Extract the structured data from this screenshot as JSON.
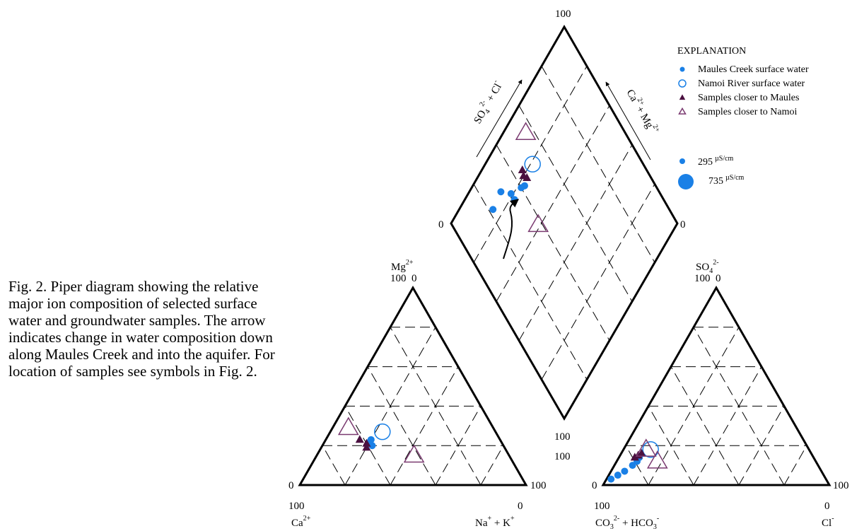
{
  "caption": "Fig. 2. Piper diagram showing the relative major ion composition of selected surface water and groundwater samples. The arrow indicates change in water composition down along Maules Creek and into the aquifer. For location of samples see symbols in Fig. 2.",
  "diamond": {
    "label_top": "100",
    "label_left": "0",
    "label_right": "0",
    "label_bottom": "100",
    "axis_left_so4": "SO",
    "axis_left_so4_sub": "4",
    "axis_left_so4_sup": "2-",
    "axis_left_cl": " + Cl",
    "axis_left_cl_sup": "-",
    "axis_right_ca": "Ca",
    "axis_right_ca_sup": "2+",
    "axis_right_mg": "+ Mg",
    "axis_right_mg_sup": "2+"
  },
  "cation": {
    "apex": "Mg",
    "apex_sup": "2+",
    "apex_values": "100  0",
    "left_zero": "0",
    "right_hundred": "100",
    "bottom_left_value": "100",
    "bottom_right_value": "0",
    "bottom_left_label": "Ca",
    "bottom_left_sup": "2+",
    "bottom_right_label_na": "Na",
    "bottom_right_label_na_sup": "+",
    "bottom_right_label_k": " + K",
    "bottom_right_label_k_sup": "+"
  },
  "anion": {
    "apex": "SO",
    "apex_sub": "4",
    "apex_sup": "2-",
    "apex_values": "100  0",
    "left_hundred": "100",
    "left_zero": "0",
    "right_hundred": "100",
    "bottom_left_value": "100",
    "bottom_right_value": "0",
    "bottom_left_label_co": "CO",
    "bottom_left_label_co_sub": "3",
    "bottom_left_label_co_sup": "2-",
    "bottom_left_label_hco": " + HCO",
    "bottom_left_label_hco_sub": "3",
    "bottom_left_label_hco_sup": "-",
    "bottom_right_label": "Cl",
    "bottom_right_sup": "-"
  },
  "legend": {
    "title": "EXPLANATION",
    "items": [
      {
        "label": "Maules Creek surface water",
        "marker": "filled-circle"
      },
      {
        "label": "Namoi River surface water",
        "marker": "open-circle"
      },
      {
        "label": "Samples closer to Maules",
        "marker": "filled-triangle"
      },
      {
        "label": "Samples closer to Namoi",
        "marker": "open-triangle"
      }
    ],
    "sizes": [
      {
        "value": "295",
        "unit": "µS/cm"
      },
      {
        "value": "735",
        "unit": "µS/cm"
      }
    ]
  },
  "colors": {
    "maules": "#1a80e6",
    "namoi": "#1a80e6",
    "closer_maules": "#4a1040",
    "closer_namoi": "#7a3a70",
    "frame": "#000000"
  },
  "chart_data": {
    "type": "scatter",
    "series": [
      {
        "name": "Maules Creek surface water",
        "marker": "filled-circle",
        "cation_points": [
          {
            "ca": 58,
            "mg": 20,
            "na_k": 22
          },
          {
            "ca": 58,
            "mg": 22,
            "na_k": 20
          },
          {
            "ca": 57,
            "mg": 23,
            "na_k": 20
          }
        ],
        "anion_points": [
          {
            "co3_hco3": 95,
            "so4": 3,
            "cl": 2
          },
          {
            "co3_hco3": 91,
            "so4": 5,
            "cl": 4
          },
          {
            "co3_hco3": 87,
            "so4": 7,
            "cl": 6
          },
          {
            "co3_hco3": 82,
            "so4": 10,
            "cl": 8
          },
          {
            "co3_hco3": 79,
            "so4": 12,
            "cl": 9
          },
          {
            "co3_hco3": 77,
            "so4": 14,
            "cl": 9
          }
        ]
      },
      {
        "name": "Namoi River surface water",
        "marker": "open-circle",
        "cation_points": [
          {
            "ca": 50,
            "mg": 27,
            "na_k": 23
          }
        ],
        "anion_points": [
          {
            "co3_hco3": 70,
            "so4": 18,
            "cl": 12
          }
        ]
      },
      {
        "name": "Samples closer to Maules",
        "marker": "filled-triangle",
        "cation_points": [
          {
            "ca": 62,
            "mg": 23,
            "na_k": 15
          },
          {
            "ca": 61,
            "mg": 19,
            "na_k": 20
          },
          {
            "ca": 60,
            "mg": 21,
            "na_k": 19
          }
        ],
        "anion_points": [
          {
            "co3_hco3": 79,
            "so4": 14,
            "cl": 7
          },
          {
            "co3_hco3": 77,
            "so4": 15,
            "cl": 8
          },
          {
            "co3_hco3": 75,
            "so4": 16,
            "cl": 9
          }
        ]
      },
      {
        "name": "Samples closer to Namoi",
        "marker": "open-triangle",
        "cation_points": [
          {
            "ca": 64,
            "mg": 29,
            "na_k": 7
          },
          {
            "ca": 42,
            "mg": 15,
            "na_k": 43
          }
        ],
        "anion_points": [
          {
            "co3_hco3": 72,
            "so4": 18,
            "cl": 10
          },
          {
            "co3_hco3": 70,
            "so4": 12,
            "cl": 18
          }
        ]
      }
    ],
    "diamond_points": [
      {
        "series": "Maules Creek surface water",
        "na_k": 15,
        "so4_cl": 22
      },
      {
        "series": "Maules Creek surface water",
        "na_k": 14,
        "so4_cl": 30
      },
      {
        "series": "Maules Creek surface water",
        "na_k": 19,
        "so4_cl": 34
      },
      {
        "series": "Maules Creek surface water",
        "na_k": 22,
        "so4_cl": 34
      },
      {
        "series": "Maules Creek surface water",
        "na_k": 22,
        "so4_cl": 40
      },
      {
        "series": "Maules Creek surface water",
        "na_k": 23,
        "so4_cl": 42
      },
      {
        "series": "Namoi River surface water",
        "na_k": 21,
        "so4_cl": 51
      },
      {
        "series": "Samples closer to Maules",
        "na_k": 18,
        "so4_cl": 45
      },
      {
        "series": "Samples closer to Maules",
        "na_k": 20,
        "so4_cl": 44
      },
      {
        "series": "Samples closer to Maules",
        "na_k": 22,
        "so4_cl": 45
      },
      {
        "series": "Samples closer to Namoi",
        "na_k": 10,
        "so4_cl": 56
      },
      {
        "series": "Samples closer to Namoi",
        "na_k": 39,
        "so4_cl": 38
      }
    ],
    "grid": true,
    "legend_placement": "top-right"
  }
}
